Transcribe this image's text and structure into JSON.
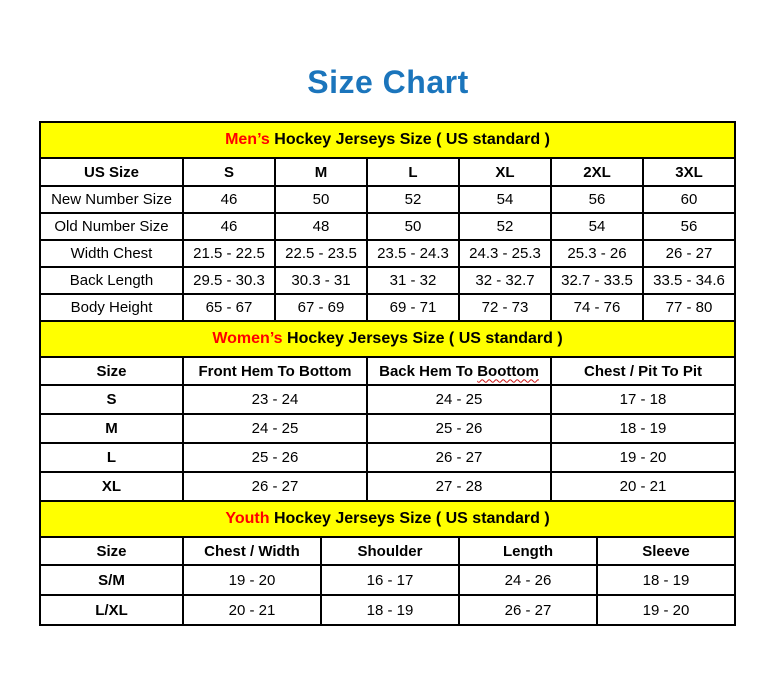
{
  "page": {
    "title": "Size Chart"
  },
  "colors": {
    "title_blue": "#1b75bc",
    "section_header_bg": "#ffff00",
    "section_header_accent": "#ff0000",
    "border": "#000000",
    "background": "#ffffff"
  },
  "tables": [
    {
      "id": "mens",
      "header": {
        "highlight": "Men’s",
        "rest": " Hockey Jerseys Size ( US standard )"
      },
      "columns": [
        "US Size",
        "S",
        "M",
        "L",
        "XL",
        "2XL",
        "3XL"
      ],
      "rows": [
        {
          "label": "New Number Size",
          "values": [
            "46",
            "50",
            "52",
            "54",
            "56",
            "60"
          ]
        },
        {
          "label": "Old Number Size",
          "values": [
            "46",
            "48",
            "50",
            "52",
            "54",
            "56"
          ]
        },
        {
          "label": "Width Chest",
          "values": [
            "21.5 - 22.5",
            "22.5 - 23.5",
            "23.5 - 24.3",
            "24.3 - 25.3",
            "25.3 - 26",
            "26 - 27"
          ]
        },
        {
          "label": "Back Length",
          "values": [
            "29.5 - 30.3",
            "30.3 - 31",
            "31 - 32",
            "32 - 32.7",
            "32.7 - 33.5",
            "33.5 - 34.6"
          ]
        },
        {
          "label": "Body Height",
          "values": [
            "65 - 67",
            "67 - 69",
            "69 - 71",
            "72 - 73",
            "74 - 76",
            "77 - 80"
          ]
        }
      ]
    },
    {
      "id": "womens",
      "header": {
        "highlight": "Women’s",
        "rest": " Hockey Jerseys Size ( US standard )"
      },
      "columns": [
        "Size",
        "Front Hem To Bottom",
        "Back Hem To Boottom",
        "Chest / Pit To Pit"
      ],
      "squiggle": {
        "col": 2,
        "word": "Boottom"
      },
      "rows": [
        {
          "label": "S",
          "values": [
            "23 - 24",
            "24 - 25",
            "17 - 18"
          ]
        },
        {
          "label": "M",
          "values": [
            "24 - 25",
            "25 - 26",
            "18 - 19"
          ]
        },
        {
          "label": "L",
          "values": [
            "25 - 26",
            "26 - 27",
            "19 - 20"
          ]
        },
        {
          "label": "XL",
          "values": [
            "26 - 27",
            "27 - 28",
            "20 - 21"
          ]
        }
      ]
    },
    {
      "id": "youth",
      "header": {
        "highlight": "Youth",
        "rest": " Hockey Jerseys Size ( US standard )"
      },
      "columns": [
        "Size",
        "Chest / Width",
        "Shoulder",
        "Length",
        "Sleeve"
      ],
      "rows": [
        {
          "label": "S/M",
          "values": [
            "19 - 20",
            "16 - 17",
            "24 - 26",
            "18 - 19"
          ]
        },
        {
          "label": "L/XL",
          "values": [
            "20 - 21",
            "18 - 19",
            "26 - 27",
            "19 - 20"
          ]
        }
      ]
    }
  ]
}
